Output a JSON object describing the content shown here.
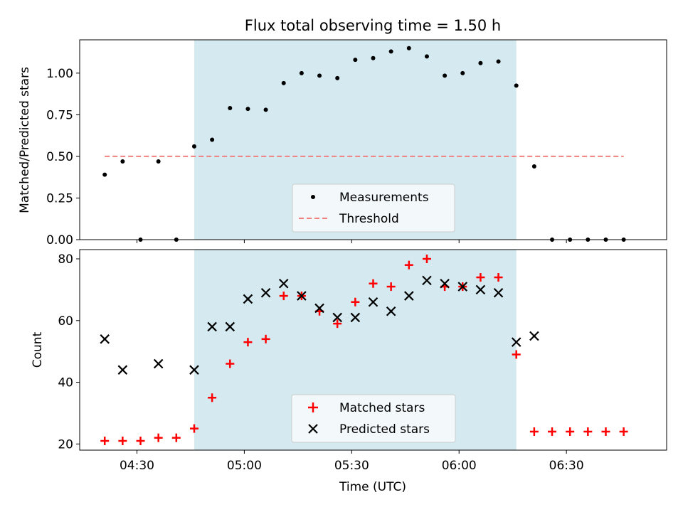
{
  "chart_data": [
    {
      "type": "scatter",
      "title": "Flux total observing time = 1.50 h",
      "ylabel": "Matched/Predicted stars",
      "xlabel": "",
      "ylim": [
        0,
        1.2
      ],
      "yticks": [
        "0.00",
        "0.25",
        "0.50",
        "0.75",
        "1.00"
      ],
      "x_tick_labels": [
        "04:30",
        "05:00",
        "05:30",
        "06:00",
        "06:30"
      ],
      "shaded_interval": [
        "04:46",
        "06:16"
      ],
      "shade_color": "#d4eaf0",
      "legend": {
        "position": "lower center",
        "entries": [
          "Measurements",
          "Threshold"
        ]
      },
      "series": [
        {
          "name": "Measurements",
          "marker": "dot",
          "color": "#000000",
          "x": [
            "04:21",
            "04:26",
            "04:31",
            "04:36",
            "04:41",
            "04:46",
            "04:51",
            "04:56",
            "05:01",
            "05:06",
            "05:11",
            "05:16",
            "05:21",
            "05:26",
            "05:31",
            "05:36",
            "05:41",
            "05:46",
            "05:51",
            "05:56",
            "06:01",
            "06:06",
            "06:11",
            "06:16",
            "06:21",
            "06:26",
            "06:31",
            "06:36",
            "06:41",
            "06:46"
          ],
          "y": [
            0.39,
            0.47,
            0.0,
            0.47,
            0.0,
            0.56,
            0.6,
            0.79,
            0.785,
            0.78,
            0.94,
            1.0,
            0.985,
            0.97,
            1.08,
            1.09,
            1.13,
            1.15,
            1.1,
            0.985,
            1.0,
            1.06,
            1.07,
            0.925,
            0.44,
            0.0,
            0.0,
            0.0,
            0.0,
            0.0
          ]
        },
        {
          "name": "Threshold",
          "marker": "dashed-line",
          "color": "#f08080",
          "x": [
            "04:21",
            "06:46"
          ],
          "y": [
            0.5,
            0.5
          ]
        }
      ]
    },
    {
      "type": "scatter",
      "title": "",
      "ylabel": "Count",
      "xlabel": "Time (UTC)",
      "ylim": [
        18,
        83
      ],
      "yticks": [
        "20",
        "40",
        "60",
        "80"
      ],
      "x_tick_labels": [
        "04:30",
        "05:00",
        "05:30",
        "06:00",
        "06:30"
      ],
      "shaded_interval": [
        "04:46",
        "06:16"
      ],
      "shade_color": "#d4eaf0",
      "legend": {
        "position": "lower center",
        "entries": [
          "Matched stars",
          "Predicted stars"
        ]
      },
      "series": [
        {
          "name": "Matched stars",
          "marker": "plus",
          "color": "#ff0000",
          "x": [
            "04:21",
            "04:26",
            "04:31",
            "04:36",
            "04:41",
            "04:46",
            "04:51",
            "04:56",
            "05:01",
            "05:06",
            "05:11",
            "05:16",
            "05:21",
            "05:26",
            "05:31",
            "05:36",
            "05:41",
            "05:46",
            "05:51",
            "05:56",
            "06:01",
            "06:06",
            "06:11",
            "06:16",
            "06:21",
            "06:26",
            "06:31",
            "06:36",
            "06:41",
            "06:46"
          ],
          "y": [
            21,
            21,
            21,
            22,
            22,
            25,
            35,
            46,
            53,
            54,
            68,
            68,
            63,
            59,
            66,
            72,
            71,
            78,
            80,
            71,
            71,
            74,
            74,
            49,
            24,
            24,
            24,
            24,
            24,
            24
          ]
        },
        {
          "name": "Predicted stars",
          "marker": "x",
          "color": "#000000",
          "x": [
            "04:21",
            "04:26",
            "04:36",
            "04:46",
            "04:51",
            "04:56",
            "05:01",
            "05:06",
            "05:11",
            "05:16",
            "05:21",
            "05:26",
            "05:31",
            "05:36",
            "05:41",
            "05:46",
            "05:51",
            "05:56",
            "06:01",
            "06:06",
            "06:11",
            "06:16",
            "06:21"
          ],
          "y": [
            54,
            44,
            46,
            44,
            58,
            58,
            67,
            69,
            72,
            68,
            64,
            61,
            61,
            66,
            63,
            68,
            73,
            72,
            71,
            70,
            69,
            53,
            55
          ]
        }
      ]
    }
  ]
}
